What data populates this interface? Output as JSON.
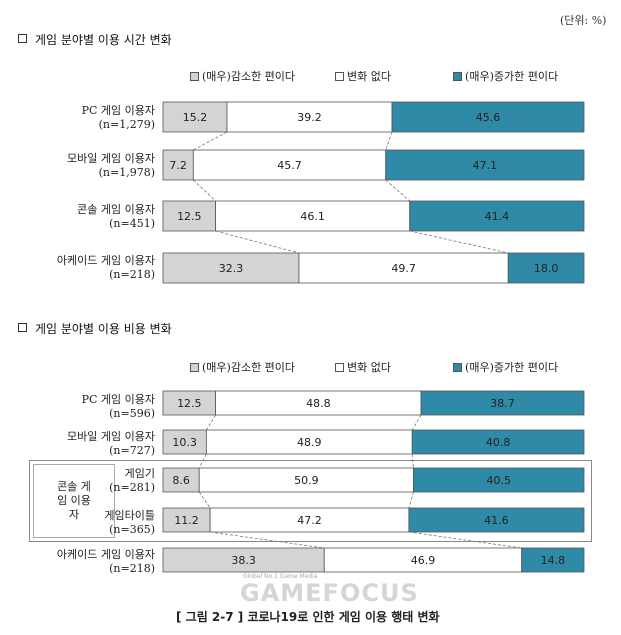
{
  "unit": "(단위: %)",
  "legend": {
    "decrease": "(매우)감소한 편이다",
    "nochange": "변화 없다",
    "increase": "(매우)증가한 편이다"
  },
  "colors": {
    "decrease": "#d4d4d4",
    "nochange": "#ffffff",
    "increase": "#2e8aa6"
  },
  "chart_data": [
    {
      "type": "bar",
      "title": "게임 분야별 이용 시간 변화",
      "stacked": true,
      "orientation": "horizontal",
      "categories": [
        {
          "name": "PC 게임 이용자",
          "n": "(n=1,279)"
        },
        {
          "name": "모바일 게임 이용자",
          "n": "(n=1,978)"
        },
        {
          "name": "콘솔 게임 이용자",
          "n": "(n=451)"
        },
        {
          "name": "아케이드 게임 이용자",
          "n": "(n=218)"
        }
      ],
      "series": [
        {
          "name": "(매우)감소한 편이다",
          "values": [
            15.2,
            7.2,
            12.5,
            32.3
          ]
        },
        {
          "name": "변화 없다",
          "values": [
            39.2,
            45.7,
            46.1,
            49.7
          ]
        },
        {
          "name": "(매우)증가한 편이다",
          "values": [
            45.6,
            47.1,
            41.4,
            18.0
          ]
        }
      ]
    },
    {
      "type": "bar",
      "title": "게임 분야별 이용 비용 변화",
      "stacked": true,
      "orientation": "horizontal",
      "group_label": "콘솔 게임 이용자",
      "categories": [
        {
          "name": "PC 게임 이용자",
          "n": "(n=596)"
        },
        {
          "name": "모바일 게임 이용자",
          "n": "(n=727)"
        },
        {
          "name": "게임기",
          "n": "(n=281)"
        },
        {
          "name": "게임타이틀",
          "n": "(n=365)"
        },
        {
          "name": "아케이드 게임 이용자",
          "n": "(n=218)"
        }
      ],
      "series": [
        {
          "name": "(매우)감소한 편이다",
          "values": [
            12.5,
            10.3,
            8.6,
            11.2,
            38.3
          ]
        },
        {
          "name": "변화 없다",
          "values": [
            48.8,
            48.9,
            50.9,
            47.2,
            46.9
          ]
        },
        {
          "name": "(매우)증가한 편이다",
          "values": [
            38.7,
            40.8,
            40.5,
            41.6,
            14.8
          ]
        }
      ]
    }
  ],
  "footer": "[ 그림 2-7 ] 코로나19로 인한 게임 이용 행태 변화",
  "watermark": {
    "tagline": "Global No.1 Game Media",
    "brand": "GAMEFOCUS"
  }
}
